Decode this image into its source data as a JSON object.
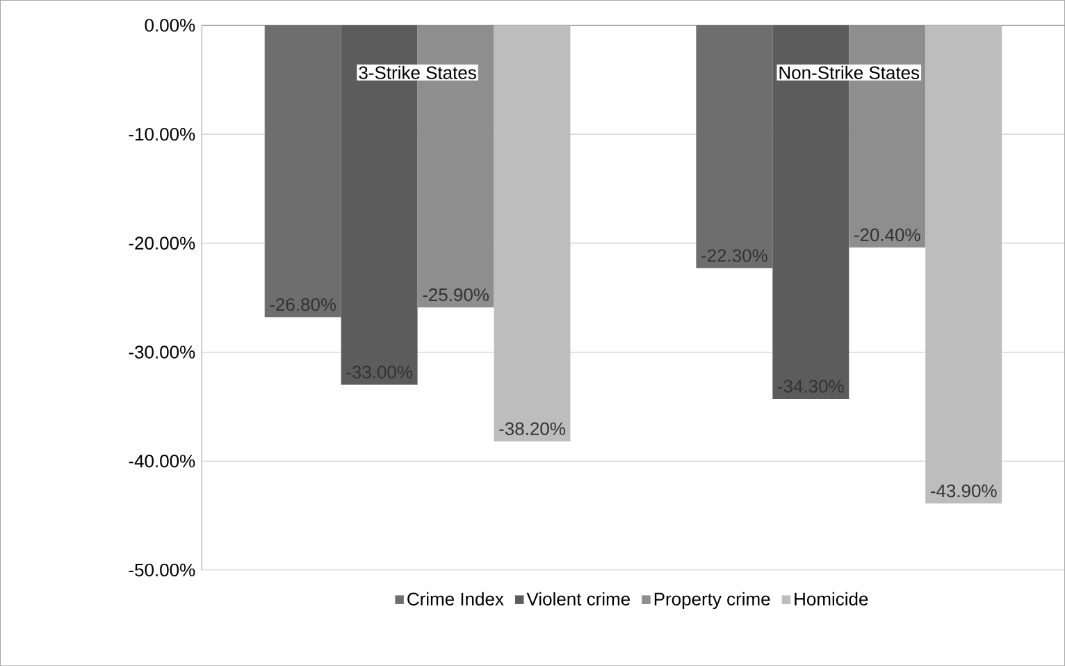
{
  "chart_data": {
    "type": "bar",
    "categories": [
      "3-Strike States",
      "Non-Strike States"
    ],
    "series": [
      {
        "name": "Crime Index",
        "color": "#6e6e6e",
        "values": [
          -26.8,
          -22.3
        ],
        "value_labels": [
          "-26.80%",
          "-22.30%"
        ]
      },
      {
        "name": "Violent crime",
        "color": "#5c5c5c",
        "values": [
          -33.0,
          -34.3
        ],
        "value_labels": [
          "-33.00%",
          "-34.30%"
        ]
      },
      {
        "name": "Property crime",
        "color": "#8e8e8e",
        "values": [
          -25.9,
          -20.4
        ],
        "value_labels": [
          "-25.90%",
          "-20.40%"
        ]
      },
      {
        "name": "Homicide",
        "color": "#bdbdbd",
        "values": [
          -38.2,
          -43.9
        ],
        "value_labels": [
          "-38.20%",
          "-43.90%"
        ]
      }
    ],
    "ylim": [
      -50,
      0
    ],
    "yticks": [
      {
        "value": -50,
        "label": "-50.00%"
      },
      {
        "value": -40,
        "label": "-40.00%"
      },
      {
        "value": -30,
        "label": "-30.00%"
      },
      {
        "value": -20,
        "label": "-20.00%"
      },
      {
        "value": -10,
        "label": "-10.00%"
      },
      {
        "value": 0,
        "label": "0.00%"
      }
    ],
    "grid": "y",
    "legend": "bottom"
  }
}
